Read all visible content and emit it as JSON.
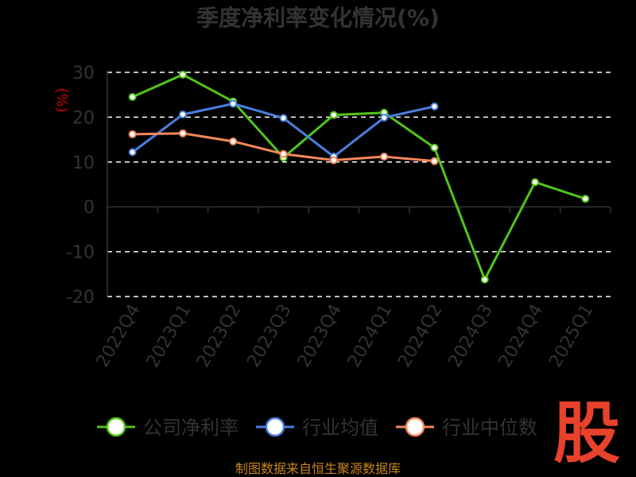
{
  "chart_data": {
    "type": "line",
    "title": "季度净利率变化情况(%)",
    "ylabel": "(%)",
    "ylim": [
      -20,
      30
    ],
    "yticks": [
      30,
      20,
      10,
      0,
      -10,
      -20
    ],
    "grid": true,
    "legend_position": "bottom",
    "categories": [
      "2022Q4",
      "2023Q1",
      "2023Q2",
      "2023Q3",
      "2023Q4",
      "2024Q1",
      "2024Q2",
      "2024Q3",
      "2024Q4",
      "2025Q1"
    ],
    "series": [
      {
        "name": "公司净利率",
        "color": "#52c41a",
        "values": [
          24.5,
          29.5,
          23.5,
          11.0,
          20.5,
          21.0,
          13.2,
          -16.2,
          5.5,
          1.8
        ]
      },
      {
        "name": "行业均值",
        "color": "#4a7fe0",
        "values": [
          12.2,
          20.6,
          23.0,
          19.8,
          11.2,
          19.9,
          22.4,
          null,
          null,
          null
        ]
      },
      {
        "name": "行业中位数",
        "color": "#f5875c",
        "values": [
          16.2,
          16.4,
          14.6,
          11.8,
          10.4,
          11.2,
          10.2,
          null,
          null,
          null
        ]
      }
    ]
  },
  "footer": {
    "source": "制图数据来自恒生聚源数据库"
  },
  "logo": {
    "text": "股"
  }
}
